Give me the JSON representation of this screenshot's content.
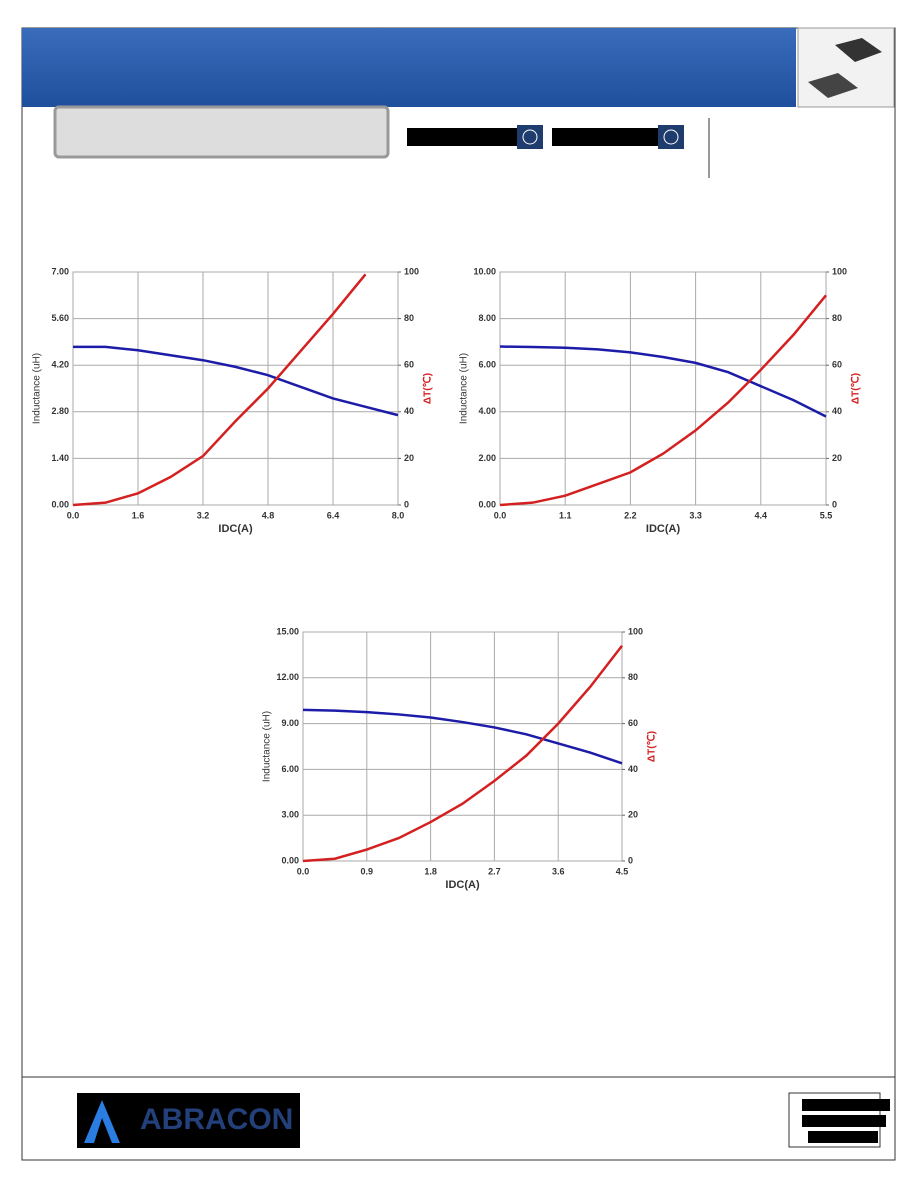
{
  "chart_data": [
    {
      "type": "line",
      "xlabel": "IDC(A)",
      "ylabel": "Inductance (uH)",
      "y2label": "ΔT(℃)",
      "grid": true,
      "x": [
        0,
        0.8,
        1.6,
        2.4,
        3.2,
        4.0,
        4.8,
        5.6,
        6.4,
        7.2,
        8.0
      ],
      "series": [
        {
          "color": "#1c1ca8",
          "values": [
            4.75,
            4.75,
            4.65,
            4.5,
            4.35,
            4.15,
            3.9,
            3.55,
            3.2,
            2.95,
            2.7
          ]
        },
        {
          "color": "#d42020",
          "axis": "y2",
          "values": [
            0,
            1,
            5,
            12,
            21,
            36,
            50,
            66,
            82,
            99,
            null
          ]
        }
      ],
      "xlim": [
        0,
        8
      ],
      "xticks": [
        {
          "value": 0,
          "label": "0.0"
        },
        {
          "value": 1.6,
          "label": "1.6"
        },
        {
          "value": 3.2,
          "label": "3.2"
        },
        {
          "value": 4.8,
          "label": "4.8"
        },
        {
          "value": 6.4,
          "label": "6.4"
        },
        {
          "value": 8,
          "label": "8.0"
        }
      ],
      "ylim": [
        0,
        7
      ],
      "yticks": [
        {
          "value": 0,
          "label": "0.00"
        },
        {
          "value": 1.4,
          "label": "1.40"
        },
        {
          "value": 2.8,
          "label": "2.80"
        },
        {
          "value": 4.2,
          "label": "4.20"
        },
        {
          "value": 5.6,
          "label": "5.60"
        },
        {
          "value": 7,
          "label": "7.00"
        }
      ],
      "y2lim": [
        0,
        100
      ],
      "y2ticks": [
        0,
        20,
        40,
        60,
        80,
        100
      ]
    },
    {
      "type": "line",
      "xlabel": "IDC(A)",
      "ylabel": "Inductance (uH)",
      "y2label": "ΔT(℃)",
      "grid": true,
      "x": [
        0,
        0.55,
        1.1,
        1.65,
        2.2,
        2.75,
        3.3,
        3.85,
        4.4,
        4.95,
        5.5
      ],
      "series": [
        {
          "color": "#1c1ca8",
          "values": [
            6.8,
            6.78,
            6.75,
            6.68,
            6.55,
            6.35,
            6.1,
            5.7,
            5.1,
            4.5,
            3.8
          ]
        },
        {
          "color": "#d42020",
          "axis": "y2",
          "values": [
            0,
            1,
            4,
            9,
            14,
            22,
            32,
            44,
            58,
            73,
            90
          ]
        }
      ],
      "xlim": [
        0,
        5.5
      ],
      "xticks": [
        {
          "value": 0,
          "label": "0.0"
        },
        1.1,
        2.2,
        3.3,
        4.4,
        5.5
      ],
      "ylim": [
        0,
        10
      ],
      "yticks": [
        {
          "value": 0,
          "label": "0.00"
        },
        {
          "value": 2,
          "label": "2.00"
        },
        {
          "value": 4,
          "label": "4.00"
        },
        {
          "value": 6,
          "label": "6.00"
        },
        {
          "value": 8,
          "label": "8.00"
        },
        {
          "value": 10,
          "label": "10.00"
        }
      ],
      "y2lim": [
        0,
        100
      ],
      "y2ticks": [
        0,
        20,
        40,
        60,
        80,
        100
      ]
    },
    {
      "type": "line",
      "xlabel": "IDC(A)",
      "ylabel": "Inductance (uH)",
      "y2label": "ΔT(℃)",
      "grid": true,
      "x": [
        0,
        0.45,
        0.9,
        1.35,
        1.8,
        2.25,
        2.7,
        3.15,
        3.6,
        4.05,
        4.5
      ],
      "series": [
        {
          "color": "#1c1ca8",
          "values": [
            9.9,
            9.85,
            9.75,
            9.6,
            9.4,
            9.1,
            8.75,
            8.3,
            7.7,
            7.1,
            6.4
          ]
        },
        {
          "color": "#d42020",
          "axis": "y2",
          "values": [
            0,
            1,
            5,
            10,
            17,
            25,
            35,
            46,
            60,
            76,
            94
          ]
        }
      ],
      "xlim": [
        0,
        4.5
      ],
      "xticks": [
        {
          "value": 0,
          "label": "0.0"
        },
        0.9,
        1.8,
        2.7,
        3.6,
        4.5
      ],
      "ylim": [
        0,
        15
      ],
      "yticks": [
        {
          "value": 0,
          "label": "0.00"
        },
        {
          "value": 3,
          "label": "3.00"
        },
        {
          "value": 6,
          "label": "6.00"
        },
        {
          "value": 9,
          "label": "9.00"
        },
        {
          "value": 12,
          "label": "12.00"
        },
        {
          "value": 15,
          "label": "15.00"
        }
      ],
      "y2lim": [
        0,
        100
      ],
      "y2ticks": [
        0,
        20,
        40,
        60,
        80,
        100
      ]
    }
  ],
  "footer": {
    "logo": "ABRACON"
  }
}
